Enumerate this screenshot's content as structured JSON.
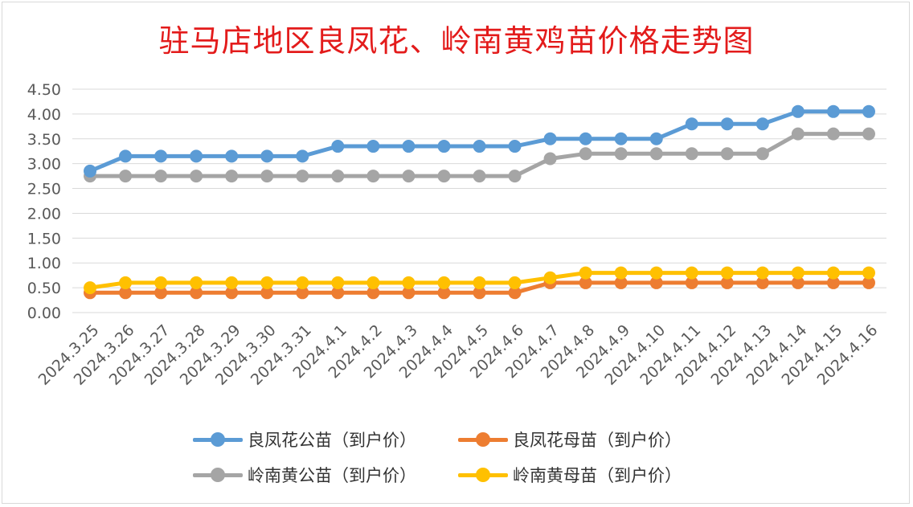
{
  "chart_data": {
    "type": "line",
    "title": "驻马店地区良凤花、岭南黄鸡苗价格走势图",
    "categories": [
      "2024.3.25",
      "2024.3.26",
      "2024.3.27",
      "2024.3.28",
      "2024.3.29",
      "2024.3.30",
      "2024.3.31",
      "2024.4.1",
      "2024.4.2",
      "2024.4.3",
      "2024.4.4",
      "2024.4.5",
      "2024.4.6",
      "2024.4.7",
      "2024.4.8",
      "2024.4.9",
      "2024.4.10",
      "2024.4.11",
      "2024.4.12",
      "2024.4.13",
      "2024.4.14",
      "2024.4.15",
      "2024.4.16"
    ],
    "y_ticks": [
      "0.00",
      "0.50",
      "1.00",
      "1.50",
      "2.00",
      "2.50",
      "3.00",
      "3.50",
      "4.00",
      "4.50"
    ],
    "ylim": [
      0,
      4.5
    ],
    "grid": true,
    "legend_position": "bottom",
    "series": [
      {
        "name": "良凤花公苗（到户价）",
        "color": "#5b9bd5",
        "values": [
          2.85,
          3.15,
          3.15,
          3.15,
          3.15,
          3.15,
          3.15,
          3.35,
          3.35,
          3.35,
          3.35,
          3.35,
          3.35,
          3.5,
          3.5,
          3.5,
          3.5,
          3.8,
          3.8,
          3.8,
          4.05,
          4.05,
          4.05
        ]
      },
      {
        "name": "良凤花母苗（到户价）",
        "color": "#ed7d31",
        "values": [
          0.4,
          0.4,
          0.4,
          0.4,
          0.4,
          0.4,
          0.4,
          0.4,
          0.4,
          0.4,
          0.4,
          0.4,
          0.4,
          0.6,
          0.6,
          0.6,
          0.6,
          0.6,
          0.6,
          0.6,
          0.6,
          0.6,
          0.6
        ]
      },
      {
        "name": "岭南黄公苗（到户价）",
        "color": "#a5a5a5",
        "values": [
          2.75,
          2.75,
          2.75,
          2.75,
          2.75,
          2.75,
          2.75,
          2.75,
          2.75,
          2.75,
          2.75,
          2.75,
          2.75,
          3.1,
          3.2,
          3.2,
          3.2,
          3.2,
          3.2,
          3.2,
          3.6,
          3.6,
          3.6
        ]
      },
      {
        "name": "岭南黄母苗（到户价）",
        "color": "#ffc000",
        "values": [
          0.5,
          0.6,
          0.6,
          0.6,
          0.6,
          0.6,
          0.6,
          0.6,
          0.6,
          0.6,
          0.6,
          0.6,
          0.6,
          0.7,
          0.8,
          0.8,
          0.8,
          0.8,
          0.8,
          0.8,
          0.8,
          0.8,
          0.8
        ]
      }
    ]
  }
}
